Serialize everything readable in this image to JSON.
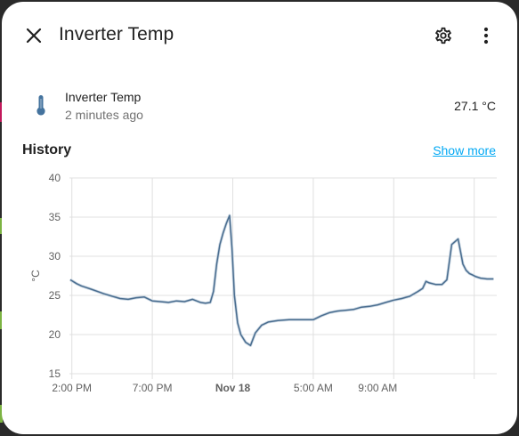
{
  "dialog": {
    "title": "Inverter Temp"
  },
  "entity": {
    "name": "Inverter Temp",
    "last_changed": "2 minutes ago",
    "state": "27.1 °C"
  },
  "history": {
    "title": "History",
    "show_more": "Show more"
  },
  "icons": {
    "close": "close-icon",
    "settings": "gear-icon",
    "more": "more-vertical-icon",
    "entity": "thermometer-icon"
  },
  "colors": {
    "line": "#4a6d8f",
    "accent": "#03a9f4",
    "icon": "#44739e"
  },
  "chart_data": {
    "type": "line",
    "title": "",
    "xlabel": "",
    "ylabel": "°C",
    "ylim": [
      15,
      40
    ],
    "yticks": [
      15,
      20,
      25,
      30,
      35,
      40
    ],
    "x_range_hours": [
      -0.15,
      26.4
    ],
    "xticks": [
      {
        "label": "2:00 PM",
        "h": 0,
        "bold": false
      },
      {
        "label": "7:00 PM",
        "h": 5,
        "bold": false
      },
      {
        "label": "Nov 18",
        "h": 10,
        "bold": true
      },
      {
        "label": "5:00 AM",
        "h": 15,
        "bold": false
      },
      {
        "label": "9:00 AM",
        "h": 19,
        "bold": false
      }
    ],
    "grid_hours": [
      0,
      5,
      10,
      15,
      20,
      25
    ],
    "grid": true,
    "legend": "none",
    "series": [
      {
        "name": "",
        "x_hours": [
          -0.1,
          0.3,
          0.6,
          0.9,
          1.2,
          1.6,
          2.0,
          2.5,
          3.0,
          3.5,
          4.0,
          4.5,
          5.0,
          5.5,
          6.0,
          6.5,
          7.0,
          7.5,
          8.0,
          8.3,
          8.6,
          8.8,
          9.0,
          9.2,
          9.4,
          9.6,
          9.8,
          9.95,
          10.1,
          10.3,
          10.5,
          10.8,
          11.1,
          11.4,
          11.8,
          12.2,
          12.8,
          13.5,
          14.2,
          15.0,
          15.5,
          16.0,
          16.5,
          17.0,
          17.5,
          18.0,
          18.5,
          19.0,
          19.5,
          20.0,
          20.5,
          21.0,
          21.5,
          21.8,
          22.0,
          22.2,
          22.6,
          23.0,
          23.3,
          23.6,
          24.0,
          24.3,
          24.5,
          24.7,
          24.9,
          25.1,
          25.4,
          25.8,
          26.2
        ],
        "values": [
          27.0,
          26.5,
          26.2,
          26.0,
          25.8,
          25.5,
          25.2,
          24.9,
          24.6,
          24.5,
          24.7,
          24.8,
          24.3,
          24.2,
          24.1,
          24.3,
          24.2,
          24.5,
          24.1,
          24.0,
          24.1,
          25.5,
          29.0,
          31.5,
          33.0,
          34.2,
          35.2,
          31.0,
          25.0,
          21.5,
          20.0,
          19.0,
          18.6,
          20.2,
          21.2,
          21.6,
          21.8,
          21.9,
          21.9,
          21.9,
          22.4,
          22.8,
          23.0,
          23.1,
          23.2,
          23.5,
          23.6,
          23.8,
          24.1,
          24.4,
          24.6,
          24.9,
          25.5,
          25.9,
          26.8,
          26.6,
          26.4,
          26.4,
          27.0,
          31.5,
          32.2,
          29.0,
          28.2,
          27.8,
          27.6,
          27.4,
          27.2,
          27.1,
          27.1
        ]
      }
    ]
  }
}
